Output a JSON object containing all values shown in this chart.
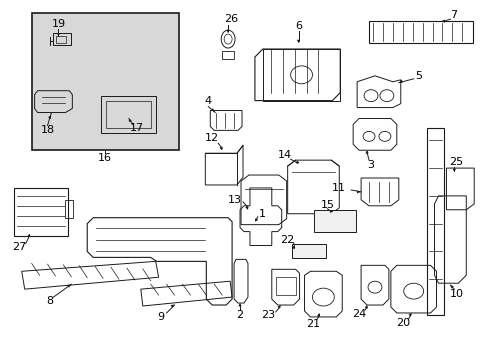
{
  "bg_color": "#ffffff",
  "fig_width": 4.89,
  "fig_height": 3.6,
  "dpi": 100,
  "line_color": "#1a1a1a",
  "fill_color": "#f0f0f0",
  "inset_fill": "#e0e0e0",
  "label_fontsize": 8.5,
  "parts_lw": 0.7
}
